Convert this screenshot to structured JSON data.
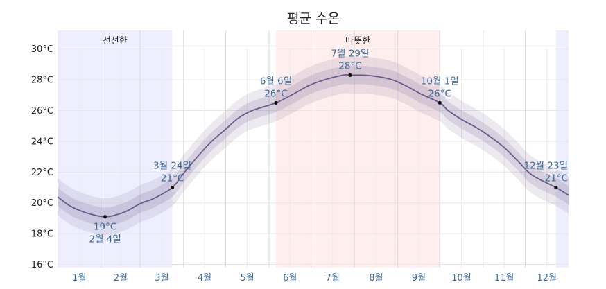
{
  "chart_data": {
    "type": "line",
    "title": "평균 수온",
    "y_unit": "°C",
    "ylim": [
      15.8,
      31.2
    ],
    "yticks": [
      16,
      18,
      20,
      22,
      24,
      26,
      28,
      30
    ],
    "ytick_labels": [
      "16°C",
      "18°C",
      "20°C",
      "22°C",
      "24°C",
      "26°C",
      "28°C",
      "30°C"
    ],
    "x_unit": "day_of_year",
    "xlim": [
      1,
      366
    ],
    "month_labels": [
      "1월",
      "2월",
      "3월",
      "4월",
      "5월",
      "6월",
      "7월",
      "8월",
      "9월",
      "10월",
      "11월",
      "12월"
    ],
    "grid": true,
    "seasons": [
      {
        "label": "선선한",
        "start": 1,
        "end": 83,
        "color": "#eeeefe"
      },
      {
        "label": "따뜻한",
        "start": 157,
        "end": 274,
        "color": "#feeeee"
      },
      {
        "label": "",
        "start": 357,
        "end": 366,
        "color": "#eeeefe"
      }
    ],
    "series": [
      {
        "x": [
          1,
          10,
          20,
          30,
          35,
          40,
          50,
          60,
          70,
          83,
          90,
          100,
          110,
          120,
          130,
          140,
          157,
          170,
          180,
          190,
          205,
          210,
          220,
          230,
          240,
          250,
          260,
          274,
          280,
          290,
          300,
          310,
          320,
          330,
          340,
          357,
          366
        ],
        "values": [
          20.4,
          19.8,
          19.4,
          19.15,
          19.1,
          19.15,
          19.45,
          19.95,
          20.3,
          21.0,
          21.8,
          22.9,
          23.9,
          24.7,
          25.5,
          26.0,
          26.5,
          27.1,
          27.6,
          27.95,
          28.3,
          28.3,
          28.3,
          28.2,
          28.0,
          27.6,
          27.1,
          26.5,
          26.0,
          25.4,
          24.9,
          24.3,
          23.6,
          22.7,
          21.8,
          21.0,
          20.5
        ],
        "band_inner": 0.6,
        "band_outer": 1.2
      }
    ],
    "annotations": [
      {
        "date": "2월 4일",
        "value": "19°C",
        "x": 35,
        "y": 19.1,
        "position": "below"
      },
      {
        "date": "3월 24일",
        "value": "21°C",
        "x": 83,
        "y": 21.0,
        "position": "above"
      },
      {
        "date": "6월 6일",
        "value": "26°C",
        "x": 157,
        "y": 26.5,
        "position": "above"
      },
      {
        "date": "7월 29일",
        "value": "28°C",
        "x": 210,
        "y": 28.3,
        "position": "above"
      },
      {
        "date": "10월 1일",
        "value": "26°C",
        "x": 274,
        "y": 26.5,
        "position": "above"
      },
      {
        "date": "12월 23일",
        "value": "21°C",
        "x": 357,
        "y": 21.0,
        "position": "above"
      }
    ],
    "colors": {
      "line": "#6a5a8c",
      "band": "#6a5a8c",
      "grid": "#e6e6e6",
      "month_grid": "#d9d9d9"
    }
  }
}
